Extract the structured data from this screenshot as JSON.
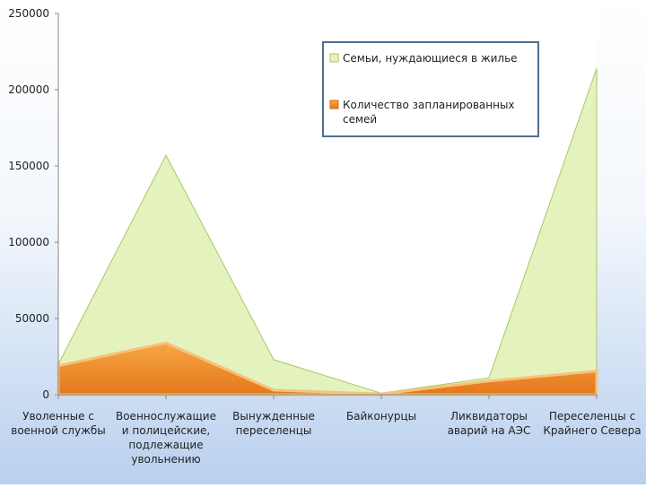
{
  "chart_data": {
    "type": "area",
    "categories": [
      "Уволенные с\nвоенной службы",
      "Военнослужащие\nи полицейские,\nподлежащие\nувольнению",
      "Вынужденные\nпереселенцы",
      "Байконурцы",
      "Ликвидаторы\nаварий на АЭС",
      "Переселенцы с\nКрайнего Севера"
    ],
    "series": [
      {
        "name": "Семьи, нуждающиеся в жилье",
        "color": "#e4f3bd",
        "values": [
          20000,
          157000,
          23000,
          1000,
          11000,
          214000
        ]
      },
      {
        "name": "Количество запланированных\nсемей",
        "color": "#ef8a1e",
        "values": [
          19000,
          34000,
          3000,
          500,
          9000,
          15500
        ]
      }
    ],
    "ylim": [
      0,
      250000
    ],
    "yticks": [
      0,
      50000,
      100000,
      150000,
      200000,
      250000
    ]
  }
}
